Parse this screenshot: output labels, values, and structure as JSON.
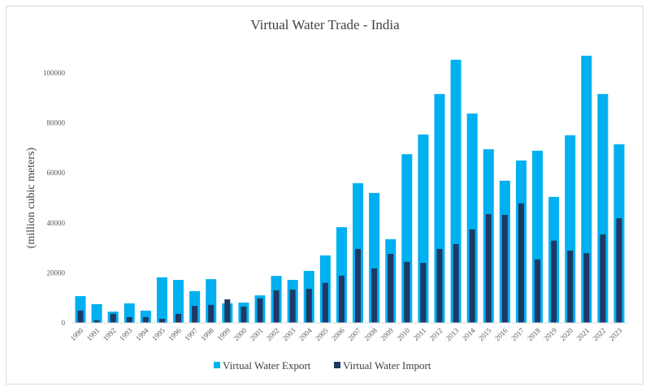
{
  "chart_data": {
    "type": "bar",
    "title": "Virtual Water Trade - India",
    "ylabel": "(million cubic meters)",
    "xlabel": "",
    "ylim": [
      0,
      110000
    ],
    "yticks": [
      0,
      20000,
      40000,
      60000,
      80000,
      100000
    ],
    "yticks_labels": [
      "0",
      "20000",
      "40000",
      "60000",
      "80000",
      "100000"
    ],
    "grid": false,
    "legend_position": "bottom",
    "categories": [
      "1990",
      "1991",
      "1992",
      "1993",
      "1994",
      "1995",
      "1996",
      "1997",
      "1998",
      "1999",
      "2000",
      "2001",
      "2002",
      "2003",
      "2004",
      "2005",
      "2006",
      "2007",
      "2008",
      "2009",
      "2010",
      "2011",
      "2012",
      "2013",
      "2014",
      "2015",
      "2016",
      "2017",
      "2018",
      "2019",
      "2020",
      "2021",
      "2022",
      "2023"
    ],
    "series": [
      {
        "name": "Virtual Water Export",
        "color": "#00b0f0",
        "values": [
          10700,
          7500,
          4500,
          7800,
          4900,
          18200,
          17200,
          12700,
          17500,
          7800,
          8100,
          11000,
          18800,
          17200,
          20800,
          27000,
          38300,
          55900,
          52000,
          33500,
          67500,
          75400,
          91600,
          105300,
          83800,
          69500,
          56900,
          65000,
          68900,
          50400,
          75100,
          106900,
          91600,
          71500
        ]
      },
      {
        "name": "Virtual Water Import",
        "color": "#1f3864",
        "values": [
          4900,
          1000,
          3600,
          2300,
          2300,
          1600,
          3600,
          6800,
          7200,
          9400,
          6500,
          9800,
          13000,
          13300,
          13600,
          16000,
          18900,
          29600,
          21800,
          27600,
          24400,
          24000,
          29600,
          31500,
          37400,
          43500,
          43200,
          47800,
          25400,
          32900,
          28900,
          27900,
          35400,
          41900
        ]
      }
    ]
  }
}
